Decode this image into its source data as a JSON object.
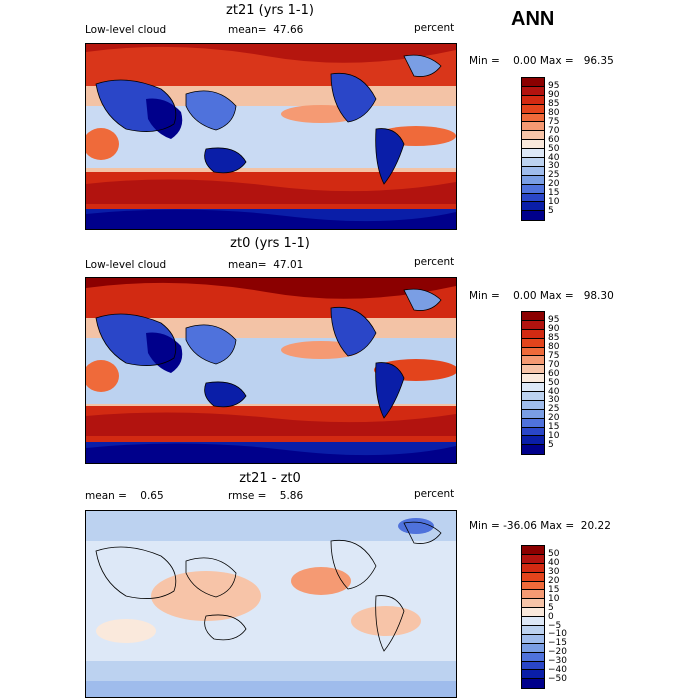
{
  "season": "ANN",
  "panels": [
    {
      "title": "zt21 (yrs 1-1)",
      "left_label": "Low-level cloud",
      "center_label": "mean=  47.66",
      "units": "percent",
      "minmax": "Min =    0.00 Max =   96.35",
      "colorbar": {
        "labels": [
          "95",
          "90",
          "85",
          "80",
          "75",
          "70",
          "60",
          "50",
          "40",
          "30",
          "25",
          "20",
          "15",
          "10",
          "5"
        ],
        "colors": [
          "#8b0000",
          "#b2130f",
          "#d22a12",
          "#e3441c",
          "#ef6a3a",
          "#f59a73",
          "#f7c4a8",
          "#fae9dc",
          "#dde8f7",
          "#bcd2f0",
          "#9fbcec",
          "#7a9ee4",
          "#4f72dc",
          "#2a46c8",
          "#0a1ea8",
          "#00008b"
        ]
      }
    },
    {
      "title": "zt0 (yrs 1-1)",
      "left_label": "Low-level cloud",
      "center_label": "mean=  47.01",
      "units": "percent",
      "minmax": "Min =    0.00 Max =   98.30",
      "colorbar": {
        "labels": [
          "95",
          "90",
          "85",
          "80",
          "75",
          "70",
          "60",
          "50",
          "40",
          "30",
          "25",
          "20",
          "15",
          "10",
          "5"
        ],
        "colors": [
          "#8b0000",
          "#b2130f",
          "#d22a12",
          "#e3441c",
          "#ef6a3a",
          "#f59a73",
          "#f7c4a8",
          "#fae9dc",
          "#dde8f7",
          "#bcd2f0",
          "#9fbcec",
          "#7a9ee4",
          "#4f72dc",
          "#2a46c8",
          "#0a1ea8",
          "#00008b"
        ]
      }
    },
    {
      "title": "zt21 - zt0",
      "left_label": "mean =    0.65",
      "center_label": "rmse =    5.86",
      "units": "percent",
      "minmax": "Min = -36.06 Max =  20.22",
      "colorbar": {
        "labels": [
          "50",
          "40",
          "30",
          "20",
          "15",
          "10",
          "5",
          "0",
          "−5",
          "−10",
          "−15",
          "−20",
          "−30",
          "−40",
          "−50"
        ],
        "colors": [
          "#8b0000",
          "#b2130f",
          "#d22a12",
          "#e3441c",
          "#ef6a3a",
          "#f59a73",
          "#f7c4a8",
          "#fae9dc",
          "#dde8f7",
          "#bcd2f0",
          "#9fbcec",
          "#7a9ee4",
          "#4f72dc",
          "#2a46c8",
          "#0a1ea8",
          "#00008b"
        ]
      }
    }
  ]
}
